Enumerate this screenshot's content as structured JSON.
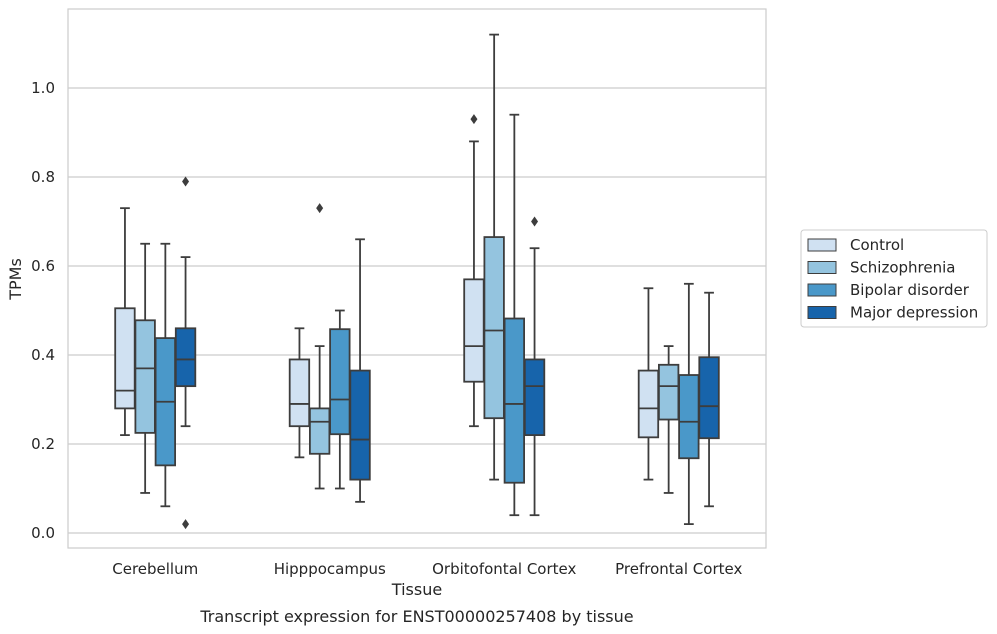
{
  "chart_data": {
    "type": "boxplot",
    "xlabel": "Tissue",
    "ylabel": "TPMs",
    "caption": "Transcript expression for ENST00000257408 by tissue",
    "ylim": [
      -0.03,
      1.17
    ],
    "yticks": [
      "0.0",
      "0.2",
      "0.4",
      "0.6",
      "0.8",
      "1.0"
    ],
    "grid": "horizontal",
    "legend_position": "right",
    "categories": [
      "Cerebellum",
      "Hipppocampus",
      "Orbitofontal Cortex",
      "Prefrontal Cortex"
    ],
    "series": [
      {
        "name": "Control",
        "color": "#d0e1f2",
        "boxes": [
          {
            "whisker_low": 0.22,
            "q1": 0.28,
            "median": 0.32,
            "q3": 0.505,
            "whisker_high": 0.73,
            "outliers": []
          },
          {
            "whisker_low": 0.17,
            "q1": 0.24,
            "median": 0.29,
            "q3": 0.39,
            "whisker_high": 0.46,
            "outliers": []
          },
          {
            "whisker_low": 0.24,
            "q1": 0.34,
            "median": 0.42,
            "q3": 0.57,
            "whisker_high": 0.88,
            "outliers": [
              0.93
            ]
          },
          {
            "whisker_low": 0.12,
            "q1": 0.215,
            "median": 0.28,
            "q3": 0.365,
            "whisker_high": 0.55,
            "outliers": []
          }
        ]
      },
      {
        "name": "Schizophrenia",
        "color": "#94c4df",
        "boxes": [
          {
            "whisker_low": 0.09,
            "q1": 0.225,
            "median": 0.37,
            "q3": 0.478,
            "whisker_high": 0.65,
            "outliers": []
          },
          {
            "whisker_low": 0.1,
            "q1": 0.178,
            "median": 0.25,
            "q3": 0.28,
            "whisker_high": 0.42,
            "outliers": [
              0.73
            ]
          },
          {
            "whisker_low": 0.12,
            "q1": 0.258,
            "median": 0.455,
            "q3": 0.665,
            "whisker_high": 1.12,
            "outliers": []
          },
          {
            "whisker_low": 0.09,
            "q1": 0.255,
            "median": 0.33,
            "q3": 0.378,
            "whisker_high": 0.42,
            "outliers": []
          }
        ]
      },
      {
        "name": "Bipolar disorder",
        "color": "#4a98c9",
        "boxes": [
          {
            "whisker_low": 0.06,
            "q1": 0.152,
            "median": 0.295,
            "q3": 0.438,
            "whisker_high": 0.65,
            "outliers": []
          },
          {
            "whisker_low": 0.1,
            "q1": 0.222,
            "median": 0.3,
            "q3": 0.458,
            "whisker_high": 0.5,
            "outliers": []
          },
          {
            "whisker_low": 0.04,
            "q1": 0.113,
            "median": 0.29,
            "q3": 0.482,
            "whisker_high": 0.94,
            "outliers": []
          },
          {
            "whisker_low": 0.02,
            "q1": 0.168,
            "median": 0.25,
            "q3": 0.355,
            "whisker_high": 0.56,
            "outliers": []
          }
        ]
      },
      {
        "name": "Major depression",
        "color": "#1764ab",
        "boxes": [
          {
            "whisker_low": 0.24,
            "q1": 0.33,
            "median": 0.39,
            "q3": 0.46,
            "whisker_high": 0.62,
            "outliers": [
              0.79,
              0.02
            ]
          },
          {
            "whisker_low": 0.07,
            "q1": 0.12,
            "median": 0.21,
            "q3": 0.365,
            "whisker_high": 0.66,
            "outliers": []
          },
          {
            "whisker_low": 0.04,
            "q1": 0.22,
            "median": 0.33,
            "q3": 0.39,
            "whisker_high": 0.64,
            "outliers": [
              0.7
            ]
          },
          {
            "whisker_low": 0.06,
            "q1": 0.213,
            "median": 0.285,
            "q3": 0.395,
            "whisker_high": 0.54,
            "outliers": []
          }
        ]
      }
    ]
  }
}
